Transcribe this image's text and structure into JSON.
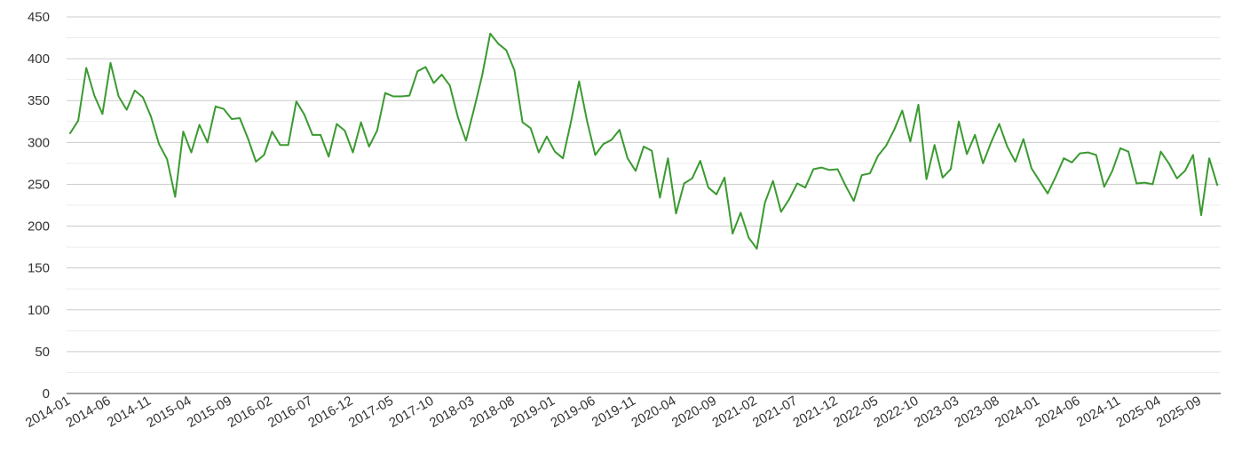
{
  "chart_data": {
    "type": "line",
    "title": "",
    "xlabel": "",
    "ylabel": "",
    "ylim": [
      0,
      450
    ],
    "yticks": [
      0,
      50,
      100,
      150,
      200,
      250,
      300,
      350,
      400,
      450
    ],
    "grid": true,
    "legend": "none",
    "line_color": "#3a9a30",
    "x_tick_labels": [
      "2014-01",
      "2014-06",
      "2014-11",
      "2015-04",
      "2015-09",
      "2016-02",
      "2016-07",
      "2016-12",
      "2017-05",
      "2017-10",
      "2018-03",
      "2018-08",
      "2019-01",
      "2019-06",
      "2019-11",
      "2020-04",
      "2020-09",
      "2021-02",
      "2021-07",
      "2021-12",
      "2022-05",
      "2022-10",
      "2023-03",
      "2023-08",
      "2024-01",
      "2024-06",
      "2024-11",
      "2025-04",
      "2025-09"
    ],
    "start_month": "2014-01",
    "series": [
      {
        "values": [
          311,
          326,
          389,
          356,
          334,
          395,
          355,
          339,
          362,
          354,
          331,
          298,
          280,
          235,
          313,
          288,
          321,
          300,
          343,
          340,
          328,
          329,
          305,
          277,
          285,
          313,
          297,
          297,
          349,
          333,
          309,
          309,
          283,
          322,
          314,
          288,
          324,
          295,
          314,
          359,
          355,
          355,
          356,
          385,
          390,
          371,
          381,
          368,
          330,
          302,
          340,
          380,
          430,
          418,
          410,
          386,
          324,
          317,
          288,
          307,
          289,
          281,
          325,
          373,
          325,
          285,
          298,
          303,
          315,
          281,
          266,
          295,
          290,
          234,
          281,
          215,
          251,
          257,
          278,
          246,
          238,
          258,
          191,
          216,
          186,
          173,
          228,
          254,
          217,
          232,
          251,
          246,
          268,
          270,
          267,
          268,
          248,
          230,
          261,
          263,
          284,
          296,
          315,
          338,
          301,
          345,
          256,
          297,
          258,
          268,
          325,
          286,
          309,
          275,
          300,
          322,
          295,
          277,
          304,
          269,
          254,
          239,
          259,
          281,
          276,
          287,
          288,
          285,
          247,
          266,
          293,
          289,
          251,
          252,
          250,
          289,
          275,
          257,
          266,
          285,
          213,
          281,
          249
        ]
      }
    ]
  }
}
